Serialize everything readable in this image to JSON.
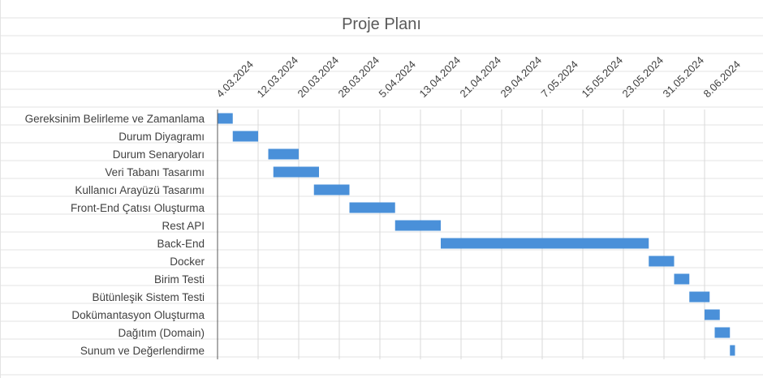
{
  "chart_data": {
    "type": "bar",
    "orientation": "horizontal-gantt",
    "title": "Proje Planı",
    "color": "#4a90d9",
    "x_ticks": [
      "4.03.2024",
      "12.03.2024",
      "20.03.2024",
      "28.03.2024",
      "5.04.2024",
      "13.04.2024",
      "21.04.2024",
      "29.04.2024",
      "7.05.2024",
      "15.05.2024",
      "23.05.2024",
      "31.05.2024",
      "8.06.2024"
    ],
    "xlim": [
      "2024-03-04",
      "2024-06-08"
    ],
    "grid": true,
    "tasks": [
      {
        "label": "Gereksinim Belirleme ve Zamanlama",
        "start": "2024-03-04",
        "end": "2024-03-07"
      },
      {
        "label": "Durum Diyagramı",
        "start": "2024-03-07",
        "end": "2024-03-12"
      },
      {
        "label": "Durum Senaryoları",
        "start": "2024-03-14",
        "end": "2024-03-20"
      },
      {
        "label": "Veri Tabanı Tasarımı",
        "start": "2024-03-15",
        "end": "2024-03-24"
      },
      {
        "label": "Kullanıcı Arayüzü Tasarımı",
        "start": "2024-03-23",
        "end": "2024-03-30"
      },
      {
        "label": "Front-End Çatısı Oluşturma",
        "start": "2024-03-30",
        "end": "2024-04-08"
      },
      {
        "label": "Rest API",
        "start": "2024-04-08",
        "end": "2024-04-17"
      },
      {
        "label": "Back-End",
        "start": "2024-04-17",
        "end": "2024-05-28"
      },
      {
        "label": "Docker",
        "start": "2024-05-28",
        "end": "2024-06-02"
      },
      {
        "label": "Birim Testi",
        "start": "2024-06-02",
        "end": "2024-06-05"
      },
      {
        "label": "Bütünleşik Sistem Testi",
        "start": "2024-06-05",
        "end": "2024-06-09"
      },
      {
        "label": "Dokümantasyon Oluşturma",
        "start": "2024-06-08",
        "end": "2024-06-11"
      },
      {
        "label": "Dağıtım (Domain)",
        "start": "2024-06-10",
        "end": "2024-06-13"
      },
      {
        "label": "Sunum ve Değerlendirme",
        "start": "2024-06-13",
        "end": "2024-06-14"
      }
    ]
  }
}
